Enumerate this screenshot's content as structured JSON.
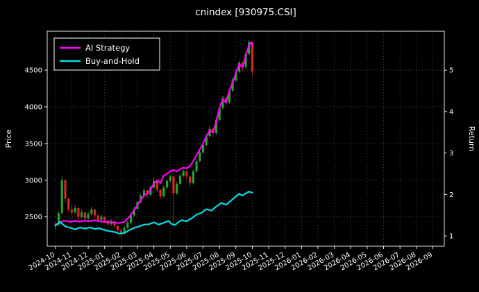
{
  "chart_data": {
    "type": "candlestick+line",
    "title": "cnindex [930975.CSI]",
    "ylabel_left": "Price",
    "ylabel_right": "Return",
    "x_tick_labels": [
      "2024-10",
      "2024-11",
      "2024-12",
      "2025-01",
      "2025-02",
      "2025-03",
      "2025-04",
      "2025-05",
      "2025-06",
      "2025-07",
      "2025-08",
      "2025-09",
      "2025-10",
      "2025-11",
      "2025-12",
      "2026-01",
      "2026-02",
      "2026-03",
      "2026-04",
      "2026-05",
      "2026-06",
      "2026-07",
      "2026-08",
      "2026-09"
    ],
    "xlim": [
      -0.5,
      23.7
    ],
    "ylim_price": [
      2100,
      5030
    ],
    "ylim_return": [
      0.75,
      5.94
    ],
    "yticks_price": [
      2500,
      3000,
      3500,
      4000,
      4500
    ],
    "yticks_return": [
      1,
      2,
      3,
      4,
      5
    ],
    "grid": true,
    "legend": {
      "position": "upper-left",
      "entries": [
        {
          "label": "AI Strategy",
          "color": "#ff00ff"
        },
        {
          "label": "Buy-and-Hold",
          "color": "#00e0e6"
        }
      ]
    },
    "colors": {
      "background": "#000000",
      "text": "#ffffff",
      "grid": "#585858",
      "frame": "#ffffff",
      "candle_up": "#2ca02c",
      "candle_down": "#d62728"
    },
    "candles_ohlc_note": "format [month_index, open, high, low, close]; month_index 0 = 2024-10",
    "candles_ohlc": [
      [
        0.0,
        2380,
        2430,
        2330,
        2400
      ],
      [
        0.2,
        2400,
        2580,
        2380,
        2550
      ],
      [
        0.4,
        2550,
        3060,
        2540,
        3000
      ],
      [
        0.6,
        3000,
        3010,
        2700,
        2750
      ],
      [
        0.8,
        2750,
        2760,
        2560,
        2600
      ],
      [
        1.0,
        2600,
        2650,
        2520,
        2560
      ],
      [
        1.2,
        2560,
        2660,
        2540,
        2620
      ],
      [
        1.4,
        2620,
        2630,
        2460,
        2500
      ],
      [
        1.6,
        2500,
        2600,
        2480,
        2560
      ],
      [
        1.8,
        2560,
        2570,
        2440,
        2480
      ],
      [
        2.0,
        2480,
        2570,
        2460,
        2540
      ],
      [
        2.2,
        2540,
        2640,
        2520,
        2600
      ],
      [
        2.4,
        2600,
        2610,
        2490,
        2520
      ],
      [
        2.6,
        2520,
        2530,
        2430,
        2460
      ],
      [
        2.8,
        2460,
        2530,
        2440,
        2500
      ],
      [
        3.0,
        2500,
        2510,
        2410,
        2440
      ],
      [
        3.2,
        2440,
        2460,
        2370,
        2400
      ],
      [
        3.4,
        2400,
        2470,
        2380,
        2440
      ],
      [
        3.6,
        2440,
        2450,
        2350,
        2380
      ],
      [
        3.8,
        2380,
        2390,
        2290,
        2320
      ],
      [
        4.0,
        2320,
        2330,
        2240,
        2280
      ],
      [
        4.2,
        2280,
        2380,
        2260,
        2350
      ],
      [
        4.4,
        2350,
        2450,
        2330,
        2420
      ],
      [
        4.6,
        2420,
        2550,
        2400,
        2520
      ],
      [
        4.8,
        2520,
        2640,
        2500,
        2610
      ],
      [
        5.0,
        2610,
        2730,
        2590,
        2700
      ],
      [
        5.2,
        2700,
        2820,
        2680,
        2790
      ],
      [
        5.4,
        2790,
        2890,
        2770,
        2860
      ],
      [
        5.6,
        2860,
        2870,
        2760,
        2800
      ],
      [
        5.8,
        2800,
        2930,
        2780,
        2900
      ],
      [
        6.0,
        2900,
        3040,
        2880,
        2990
      ],
      [
        6.2,
        2990,
        3000,
        2830,
        2870
      ],
      [
        6.4,
        2870,
        2880,
        2740,
        2780
      ],
      [
        6.6,
        2780,
        2930,
        2760,
        2900
      ],
      [
        6.8,
        2900,
        3020,
        2880,
        2990
      ],
      [
        7.0,
        2990,
        3080,
        2960,
        3050
      ],
      [
        7.2,
        3050,
        3060,
        2350,
        2820
      ],
      [
        7.4,
        2820,
        2980,
        2800,
        2950
      ],
      [
        7.6,
        2950,
        3090,
        2930,
        3060
      ],
      [
        7.8,
        3060,
        3150,
        3040,
        3120
      ],
      [
        8.0,
        3120,
        3130,
        3010,
        3050
      ],
      [
        8.2,
        3050,
        3060,
        2910,
        2960
      ],
      [
        8.4,
        2960,
        3150,
        2940,
        3120
      ],
      [
        8.6,
        3120,
        3290,
        3100,
        3260
      ],
      [
        8.8,
        3260,
        3410,
        3240,
        3380
      ],
      [
        9.0,
        3380,
        3510,
        3360,
        3480
      ],
      [
        9.2,
        3480,
        3630,
        3460,
        3600
      ],
      [
        9.4,
        3600,
        3730,
        3580,
        3700
      ],
      [
        9.6,
        3700,
        3710,
        3590,
        3640
      ],
      [
        9.8,
        3640,
        3850,
        3620,
        3820
      ],
      [
        10.0,
        3820,
        4010,
        3800,
        3980
      ],
      [
        10.2,
        3980,
        4150,
        3960,
        4120
      ],
      [
        10.4,
        4120,
        4130,
        4010,
        4060
      ],
      [
        10.6,
        4060,
        4250,
        4040,
        4220
      ],
      [
        10.8,
        4220,
        4390,
        4200,
        4360
      ],
      [
        11.0,
        4360,
        4510,
        4340,
        4480
      ],
      [
        11.2,
        4480,
        4630,
        4460,
        4600
      ],
      [
        11.4,
        4600,
        4610,
        4490,
        4540
      ],
      [
        11.6,
        4540,
        4750,
        4520,
        4720
      ],
      [
        11.8,
        4720,
        4910,
        4700,
        4880
      ],
      [
        12.0,
        4880,
        4890,
        4420,
        4480
      ]
    ],
    "series": [
      {
        "name": "AI Strategy",
        "color": "#ff00ff",
        "points": [
          [
            0,
            2390
          ],
          [
            0.3,
            2430
          ],
          [
            0.6,
            2450
          ],
          [
            0.9,
            2430
          ],
          [
            1.2,
            2445
          ],
          [
            1.5,
            2435
          ],
          [
            1.8,
            2450
          ],
          [
            2.1,
            2440
          ],
          [
            2.4,
            2455
          ],
          [
            2.7,
            2440
          ],
          [
            3,
            2430
          ],
          [
            3.3,
            2435
          ],
          [
            3.6,
            2420
          ],
          [
            3.9,
            2415
          ],
          [
            4.2,
            2430
          ],
          [
            4.5,
            2500
          ],
          [
            4.8,
            2590
          ],
          [
            5.1,
            2700
          ],
          [
            5.4,
            2790
          ],
          [
            5.7,
            2840
          ],
          [
            6,
            2950
          ],
          [
            6.2,
            3000
          ],
          [
            6.4,
            2960
          ],
          [
            6.6,
            3060
          ],
          [
            6.8,
            3090
          ],
          [
            7,
            3120
          ],
          [
            7.2,
            3140
          ],
          [
            7.4,
            3120
          ],
          [
            7.6,
            3150
          ],
          [
            7.8,
            3170
          ],
          [
            8,
            3160
          ],
          [
            8.2,
            3190
          ],
          [
            8.4,
            3260
          ],
          [
            8.6,
            3340
          ],
          [
            8.8,
            3420
          ],
          [
            9,
            3500
          ],
          [
            9.2,
            3600
          ],
          [
            9.4,
            3680
          ],
          [
            9.6,
            3650
          ],
          [
            9.8,
            3800
          ],
          [
            10,
            3990
          ],
          [
            10.2,
            4100
          ],
          [
            10.4,
            4060
          ],
          [
            10.6,
            4220
          ],
          [
            10.8,
            4330
          ],
          [
            11,
            4460
          ],
          [
            11.2,
            4580
          ],
          [
            11.4,
            4540
          ],
          [
            11.6,
            4700
          ],
          [
            11.8,
            4840
          ],
          [
            11.95,
            4880
          ],
          [
            12,
            4830
          ]
        ]
      },
      {
        "name": "Buy-and-Hold",
        "color": "#00e0e6",
        "points": [
          [
            0,
            2380
          ],
          [
            0.3,
            2430
          ],
          [
            0.6,
            2370
          ],
          [
            0.9,
            2350
          ],
          [
            1.2,
            2330
          ],
          [
            1.5,
            2355
          ],
          [
            1.8,
            2340
          ],
          [
            2.1,
            2355
          ],
          [
            2.4,
            2335
          ],
          [
            2.7,
            2345
          ],
          [
            3,
            2320
          ],
          [
            3.3,
            2305
          ],
          [
            3.6,
            2295
          ],
          [
            3.9,
            2270
          ],
          [
            4.2,
            2280
          ],
          [
            4.5,
            2320
          ],
          [
            4.8,
            2350
          ],
          [
            5.1,
            2370
          ],
          [
            5.4,
            2395
          ],
          [
            5.7,
            2400
          ],
          [
            6,
            2425
          ],
          [
            6.3,
            2395
          ],
          [
            6.6,
            2420
          ],
          [
            6.9,
            2445
          ],
          [
            7.1,
            2400
          ],
          [
            7.3,
            2390
          ],
          [
            7.5,
            2430
          ],
          [
            7.7,
            2455
          ],
          [
            8,
            2440
          ],
          [
            8.3,
            2480
          ],
          [
            8.6,
            2530
          ],
          [
            8.9,
            2555
          ],
          [
            9.2,
            2605
          ],
          [
            9.5,
            2585
          ],
          [
            9.8,
            2640
          ],
          [
            10.1,
            2690
          ],
          [
            10.4,
            2665
          ],
          [
            10.7,
            2720
          ],
          [
            11,
            2780
          ],
          [
            11.2,
            2815
          ],
          [
            11.4,
            2790
          ],
          [
            11.6,
            2820
          ],
          [
            11.8,
            2845
          ],
          [
            12,
            2830
          ]
        ]
      }
    ]
  }
}
